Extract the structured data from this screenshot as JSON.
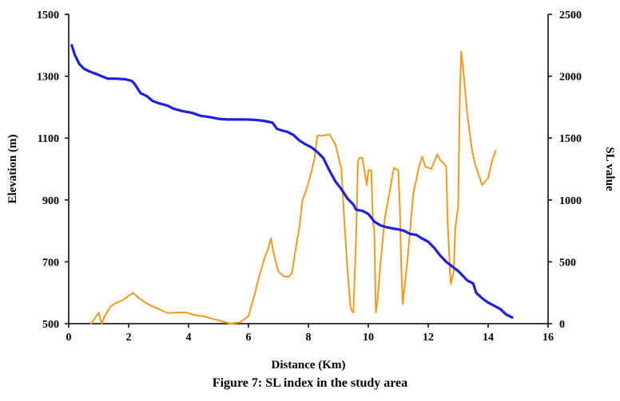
{
  "caption": "Figure 7: SL index in the study area",
  "chart_data": {
    "type": "line",
    "title": "",
    "xlabel": "Distance (Km)",
    "ylabel": "Elevation (m)",
    "y2label": "SL value",
    "xlim": [
      0,
      16
    ],
    "ylim": [
      500,
      1500
    ],
    "y2lim": [
      0,
      2500
    ],
    "x_ticks": [
      "0",
      "2",
      "4",
      "6",
      "8",
      "10",
      "12",
      "14",
      "16"
    ],
    "y_ticks": [
      "500",
      "700",
      "900",
      "1100",
      "1300",
      "1500"
    ],
    "y2_ticks": [
      "0",
      "500",
      "1000",
      "1500",
      "2000",
      "2500"
    ],
    "grid": false,
    "legend": "none",
    "colors": {
      "elevation": "#1f1fe0",
      "sl": "#f29a1b"
    },
    "series": [
      {
        "axis": "left",
        "color": "#1f1fe0",
        "x": [
          0.1,
          0.2,
          0.35,
          0.5,
          0.7,
          0.9,
          1.1,
          1.3,
          1.6,
          1.9,
          2.1,
          2.2,
          2.4,
          2.6,
          2.8,
          3.0,
          3.3,
          3.5,
          3.8,
          4.1,
          4.4,
          4.7,
          5.0,
          5.3,
          5.6,
          5.9,
          6.2,
          6.5,
          6.8,
          6.95,
          7.1,
          7.3,
          7.5,
          7.7,
          7.9,
          8.1,
          8.3,
          8.5,
          8.7,
          8.9,
          9.1,
          9.3,
          9.5,
          9.6,
          9.8,
          10.0,
          10.2,
          10.4,
          10.6,
          10.8,
          11.0,
          11.2,
          11.4,
          11.6,
          11.8,
          12.0,
          12.2,
          12.4,
          12.6,
          12.8,
          13.0,
          13.1,
          13.3,
          13.5,
          13.6,
          13.8,
          14.0,
          14.2,
          14.4,
          14.6,
          14.8
        ],
        "y": [
          1400,
          1370,
          1340,
          1325,
          1315,
          1308,
          1300,
          1292,
          1292,
          1290,
          1285,
          1275,
          1245,
          1236,
          1220,
          1213,
          1205,
          1195,
          1187,
          1182,
          1172,
          1168,
          1162,
          1160,
          1160,
          1160,
          1159,
          1156,
          1150,
          1130,
          1125,
          1120,
          1110,
          1092,
          1080,
          1070,
          1055,
          1035,
          995,
          960,
          935,
          905,
          885,
          868,
          865,
          855,
          830,
          818,
          812,
          808,
          805,
          800,
          790,
          787,
          775,
          765,
          745,
          720,
          700,
          685,
          670,
          660,
          640,
          630,
          600,
          582,
          568,
          558,
          548,
          530,
          520
        ]
      },
      {
        "axis": "right",
        "color": "#f29a1b",
        "x": [
          0.75,
          1.0,
          1.1,
          1.2,
          1.4,
          1.6,
          1.8,
          2.0,
          2.15,
          2.3,
          2.5,
          2.7,
          3.0,
          3.3,
          3.6,
          3.9,
          4.2,
          4.5,
          4.8,
          5.1,
          5.4,
          5.7,
          6.0,
          6.08,
          6.2,
          6.3,
          6.45,
          6.55,
          6.65,
          6.75,
          6.8,
          6.9,
          7.0,
          7.2,
          7.35,
          7.45,
          7.6,
          7.7,
          7.8,
          7.9,
          8.0,
          8.1,
          8.2,
          8.3,
          8.5,
          8.7,
          8.9,
          9.1,
          9.2,
          9.3,
          9.4,
          9.45,
          9.5,
          9.6,
          9.65,
          9.7,
          9.8,
          9.95,
          10.0,
          10.1,
          10.15,
          10.2,
          10.25,
          10.3,
          10.4,
          10.55,
          10.7,
          10.85,
          11.0,
          11.05,
          11.1,
          11.15,
          11.3,
          11.5,
          11.7,
          11.8,
          11.9,
          12.1,
          12.3,
          12.4,
          12.5,
          12.6,
          12.65,
          12.75,
          12.85,
          12.9,
          13.0,
          13.05,
          13.1,
          13.15,
          13.3,
          13.45,
          13.55,
          13.8,
          14.0,
          14.15,
          14.25
        ],
        "y": [
          0,
          90,
          0,
          60,
          140,
          170,
          190,
          225,
          250,
          215,
          180,
          150,
          120,
          85,
          90,
          90,
          70,
          60,
          40,
          20,
          0,
          10,
          60,
          130,
          230,
          330,
          460,
          540,
          600,
          690,
          620,
          510,
          420,
          380,
          380,
          410,
          640,
          780,
          1000,
          1060,
          1140,
          1230,
          1330,
          1520,
          1520,
          1530,
          1450,
          1250,
          830,
          450,
          150,
          100,
          90,
          760,
          1310,
          1340,
          1340,
          1120,
          1240,
          1240,
          840,
          750,
          90,
          170,
          470,
          850,
          1050,
          1260,
          1240,
          950,
          450,
          160,
          500,
          1050,
          1280,
          1350,
          1270,
          1250,
          1370,
          1320,
          1300,
          1270,
          800,
          320,
          420,
          770,
          950,
          1800,
          2200,
          2100,
          1700,
          1420,
          1300,
          1120,
          1180,
          1330,
          1400
        ]
      }
    ]
  }
}
